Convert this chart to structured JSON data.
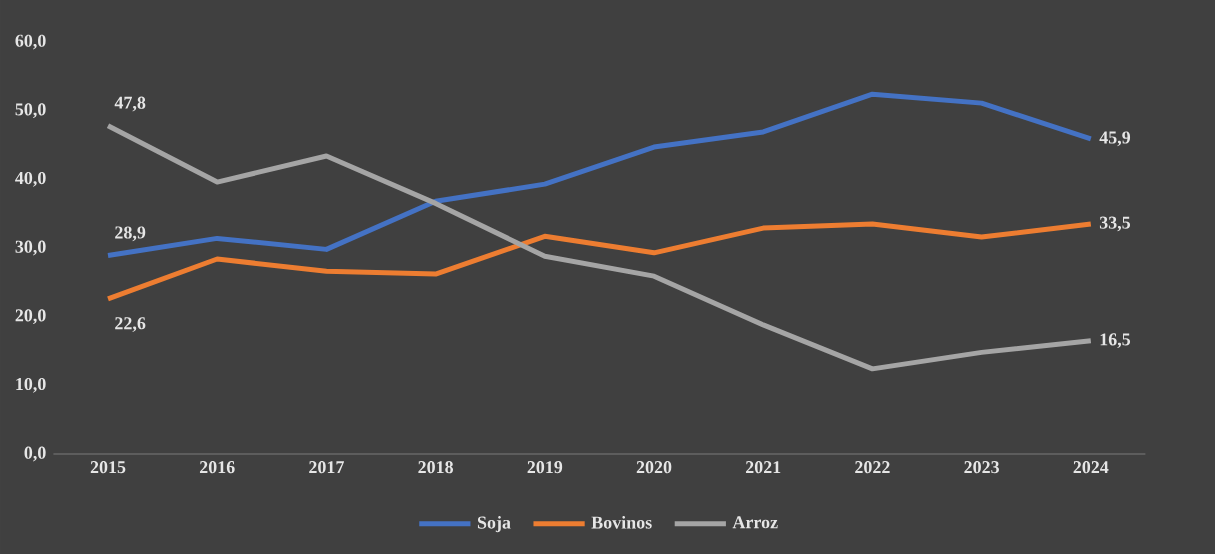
{
  "chart_data": {
    "type": "line",
    "categories": [
      "2015",
      "2016",
      "2017",
      "2018",
      "2019",
      "2020",
      "2021",
      "2022",
      "2023",
      "2024"
    ],
    "series": [
      {
        "name": "Soja",
        "color": "#4472c4",
        "values": [
          28.9,
          31.4,
          29.8,
          36.8,
          39.3,
          44.7,
          46.9,
          52.4,
          51.1,
          45.9
        ],
        "value_labels": [
          "28,9",
          null,
          null,
          null,
          null,
          null,
          null,
          null,
          null,
          "45,9"
        ]
      },
      {
        "name": "Bovinos",
        "color": "#ed7d31",
        "values": [
          22.6,
          28.4,
          26.6,
          26.2,
          31.7,
          29.3,
          32.9,
          33.5,
          31.6,
          33.5
        ],
        "value_labels": [
          "22,6",
          null,
          null,
          null,
          null,
          null,
          null,
          null,
          null,
          "33,5"
        ]
      },
      {
        "name": "Arroz",
        "color": "#a5a5a5",
        "values": [
          47.8,
          39.6,
          43.4,
          36.5,
          28.8,
          25.9,
          18.8,
          12.4,
          14.8,
          16.5
        ],
        "value_labels": [
          "47,8",
          null,
          null,
          null,
          null,
          null,
          null,
          null,
          null,
          "16,5"
        ]
      }
    ],
    "ylim": [
      0,
      60
    ],
    "yticks": [
      {
        "value": 0,
        "label": "0,0"
      },
      {
        "value": 10,
        "label": "10,0"
      },
      {
        "value": 20,
        "label": "20,0"
      },
      {
        "value": 30,
        "label": "30,0"
      },
      {
        "value": 40,
        "label": "40,0"
      },
      {
        "value": 50,
        "label": "50,0"
      },
      {
        "value": 60,
        "label": "60,0"
      }
    ],
    "grid": false,
    "legend": "bottom",
    "marker": "none",
    "line_style": "solid"
  }
}
